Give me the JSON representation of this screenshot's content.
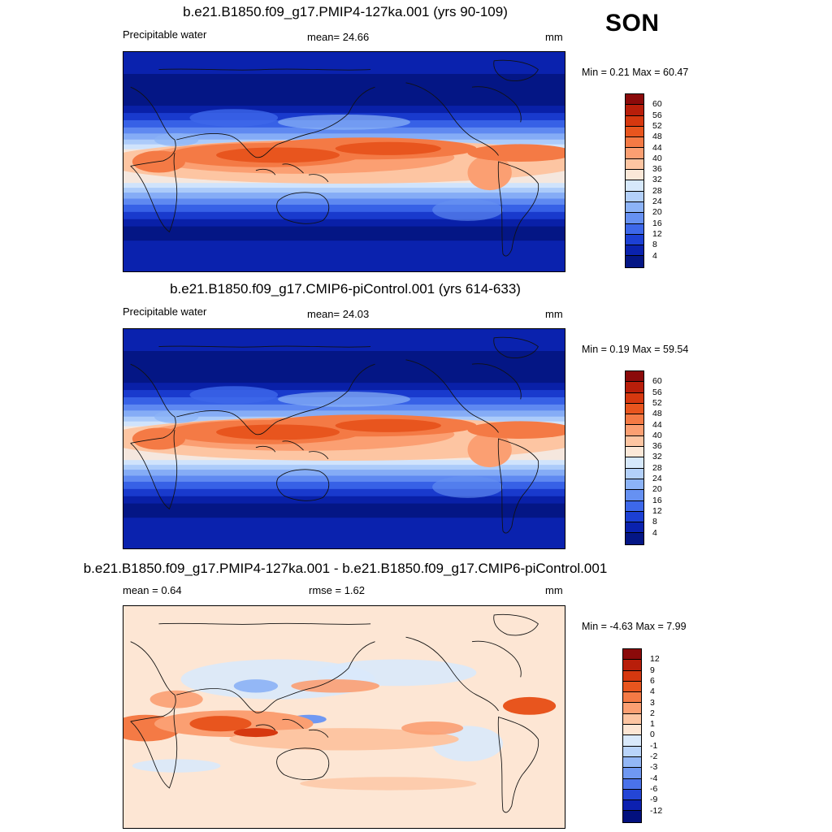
{
  "season": "SON",
  "panels": [
    {
      "title": "b.e21.B1850.f09_g17.PMIP4-127ka.001 (yrs 90-109)",
      "left_label": "Precipitable water",
      "center_label": "mean=  24.66",
      "units": "mm",
      "minmax": "Min =   0.21 Max =  60.47",
      "field": "precip",
      "colorbar_labels": [
        "60",
        "56",
        "52",
        "48",
        "44",
        "40",
        "36",
        "32",
        "28",
        "24",
        "20",
        "16",
        "12",
        "8",
        "4"
      ]
    },
    {
      "title": "b.e21.B1850.f09_g17.CMIP6-piControl.001 (yrs 614-633)",
      "left_label": "Precipitable water",
      "center_label": "mean=  24.03",
      "units": "mm",
      "minmax": "Min =   0.19 Max =  59.54",
      "field": "precip",
      "colorbar_labels": [
        "60",
        "56",
        "52",
        "48",
        "44",
        "40",
        "36",
        "32",
        "28",
        "24",
        "20",
        "16",
        "12",
        "8",
        "4"
      ]
    },
    {
      "title": "b.e21.B1850.f09_g17.PMIP4-127ka.001 - b.e21.B1850.f09_g17.CMIP6-piControl.001",
      "left_label": "mean =   0.64",
      "center_label": "rmse =   1.62",
      "units": "mm",
      "minmax": "Min =  -4.63 Max =   7.99",
      "field": "diff",
      "colorbar_labels": [
        "12",
        "9",
        "6",
        "4",
        "3",
        "2",
        "1",
        "0",
        "-1",
        "-2",
        "-3",
        "-4",
        "-6",
        "-9",
        "-12"
      ]
    }
  ],
  "colors": {
    "precip_scale": [
      "#8b0a0a",
      "#b81e0a",
      "#d6380f",
      "#e8551e",
      "#f47a45",
      "#fb9f72",
      "#fdc5a2",
      "#fbe8d8",
      "#d6e8fb",
      "#b3d0fa",
      "#8cb3f7",
      "#6691f2",
      "#3d68ea",
      "#1c40d4",
      "#0a22ae",
      "#041685"
    ],
    "diff_scale": [
      "#8b0a0a",
      "#b81e0a",
      "#d6380f",
      "#e8551e",
      "#f47a45",
      "#fb9f72",
      "#fdc5a2",
      "#fde6d4",
      "#d9e9fb",
      "#b9d4fa",
      "#93b7f6",
      "#6f98f2",
      "#4a72ea",
      "#2446d6",
      "#0c20b0",
      "#02107e"
    ]
  }
}
